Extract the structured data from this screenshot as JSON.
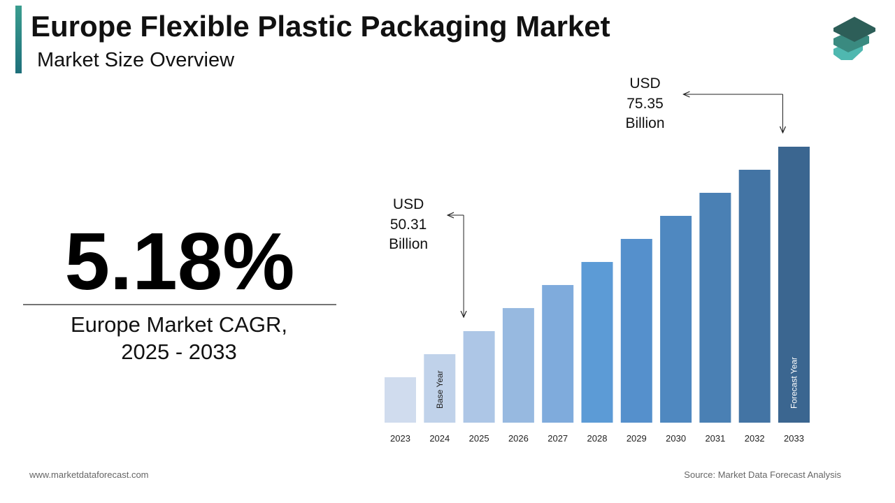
{
  "header": {
    "title": "Europe Flexible Plastic Packaging Market",
    "subtitle": "Market Size Overview"
  },
  "highlight": {
    "cagr": "5.18%",
    "label": "Europe Market CAGR,",
    "period": "2025 - 2033"
  },
  "chart_data": {
    "type": "bar",
    "categories": [
      "2023",
      "2024",
      "2025",
      "2026",
      "2027",
      "2028",
      "2029",
      "2030",
      "2031",
      "2032",
      "2033"
    ],
    "values": [
      44.05,
      47.18,
      50.31,
      53.44,
      56.57,
      59.7,
      62.83,
      65.96,
      69.09,
      72.22,
      75.35
    ],
    "value_labels": [
      null,
      null,
      "50.31",
      null,
      null,
      null,
      null,
      null,
      null,
      null,
      "75.35"
    ],
    "value_prefix": "USD",
    "value_unit": "Billion",
    "bar_notes": [
      null,
      "Base Year",
      null,
      null,
      null,
      null,
      null,
      null,
      null,
      null,
      "Forecast Year"
    ],
    "colors": [
      "#d0dcee",
      "#c0d2ea",
      "#adc6e6",
      "#97b9e0",
      "#7fabdc",
      "#5c9bd6",
      "#5590cc",
      "#4f88c0",
      "#4a80b4",
      "#4374a4",
      "#3b6690"
    ],
    "ylim": [
      37.88,
      78.48
    ]
  },
  "footer": {
    "website": "www.marketdataforecast.com",
    "source": "Source: Market Data Forecast Analysis"
  }
}
